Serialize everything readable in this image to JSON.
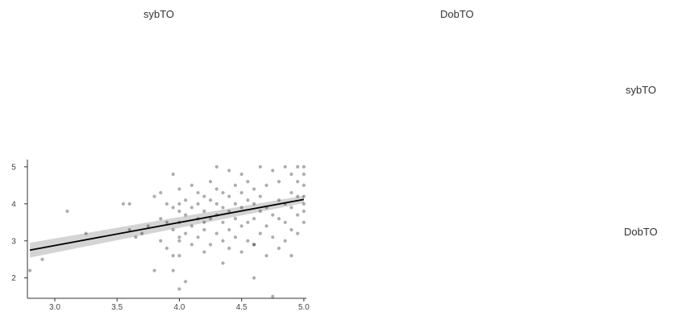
{
  "panels": {
    "col_labels": [
      "sybTO",
      "DobTO"
    ],
    "row_labels": [
      "sybTO",
      "DobTO"
    ]
  },
  "chart_data": {
    "type": "scatter",
    "panel": "DobTO vs sybTO",
    "xlabel": "",
    "ylabel": "",
    "xlim": [
      2.78,
      5.02
    ],
    "ylim": [
      1.45,
      5.15
    ],
    "x_ticks": [
      "3.0",
      "3.5",
      "4.0",
      "4.5",
      "5.0"
    ],
    "y_ticks": [
      "2",
      "3",
      "4",
      "5"
    ],
    "grid": false,
    "regression": {
      "x": [
        2.8,
        5.0
      ],
      "y": [
        2.75,
        4.12
      ],
      "band_lower": [
        2.55,
        4.02
      ],
      "band_upper": [
        2.95,
        4.22
      ]
    },
    "point_color": "#000000",
    "band_color": "#cccccc",
    "points": {
      "x": [
        2.8,
        2.9,
        3.1,
        3.25,
        3.55,
        3.6,
        3.6,
        3.65,
        3.7,
        3.75,
        3.8,
        3.8,
        3.85,
        3.85,
        3.85,
        3.9,
        3.9,
        3.9,
        3.95,
        3.95,
        3.95,
        3.95,
        4.0,
        4.0,
        4.0,
        4.0,
        4.0,
        4.0,
        4.0,
        4.05,
        4.05,
        4.05,
        4.05,
        4.1,
        4.1,
        4.1,
        4.1,
        4.15,
        4.15,
        4.15,
        4.15,
        4.2,
        4.2,
        4.2,
        4.2,
        4.2,
        4.25,
        4.25,
        4.25,
        4.25,
        4.3,
        4.3,
        4.3,
        4.3,
        4.3,
        4.35,
        4.35,
        4.35,
        4.35,
        4.4,
        4.4,
        4.4,
        4.4,
        4.4,
        4.45,
        4.45,
        4.45,
        4.45,
        4.5,
        4.5,
        4.5,
        4.5,
        4.5,
        4.55,
        4.55,
        4.55,
        4.55,
        4.6,
        4.6,
        4.6,
        4.6,
        4.6,
        4.65,
        4.65,
        4.65,
        4.65,
        4.7,
        4.7,
        4.7,
        4.7,
        4.75,
        4.75,
        4.75,
        4.75,
        4.8,
        4.8,
        4.8,
        4.8,
        4.85,
        4.85,
        4.85,
        4.85,
        4.9,
        4.9,
        4.9,
        4.9,
        4.9,
        4.95,
        4.95,
        4.95,
        4.95,
        4.95,
        5.0,
        5.0,
        5.0,
        5.0,
        5.0,
        5.0,
        5.0,
        4.6,
        4.35,
        4.0,
        3.95
      ],
      "y": [
        2.2,
        2.5,
        3.8,
        3.2,
        4.0,
        3.3,
        4.0,
        3.1,
        3.2,
        3.4,
        2.2,
        4.2,
        3.0,
        3.6,
        4.3,
        2.8,
        3.5,
        4.0,
        2.6,
        3.3,
        3.9,
        4.8,
        1.7,
        2.6,
        3.0,
        3.5,
        4.0,
        4.4,
        3.8,
        1.9,
        3.2,
        3.7,
        4.1,
        2.9,
        3.4,
        3.9,
        4.5,
        3.1,
        3.6,
        4.0,
        4.3,
        2.7,
        3.3,
        3.8,
        4.2,
        3.5,
        2.9,
        3.6,
        4.1,
        4.6,
        5.0,
        3.2,
        3.7,
        4.0,
        4.4,
        2.4,
        3.5,
        3.9,
        4.3,
        2.8,
        3.3,
        3.8,
        4.2,
        4.9,
        3.1,
        3.6,
        4.0,
        4.5,
        2.7,
        3.4,
        3.9,
        4.3,
        4.8,
        3.0,
        3.5,
        4.1,
        4.6,
        2.0,
        2.9,
        3.6,
        4.0,
        4.4,
        3.2,
        3.8,
        4.2,
        5.0,
        2.6,
        3.4,
        3.9,
        4.5,
        1.5,
        3.1,
        3.7,
        4.9,
        2.8,
        3.6,
        4.1,
        4.6,
        3.0,
        3.5,
        4.0,
        5.0,
        2.6,
        3.3,
        3.9,
        4.3,
        4.8,
        3.2,
        3.7,
        4.2,
        4.6,
        5.0,
        3.5,
        3.8,
        4.0,
        4.2,
        4.5,
        4.8,
        5.0,
        2.9,
        3.0,
        3.1,
        2.2
      ]
    }
  }
}
